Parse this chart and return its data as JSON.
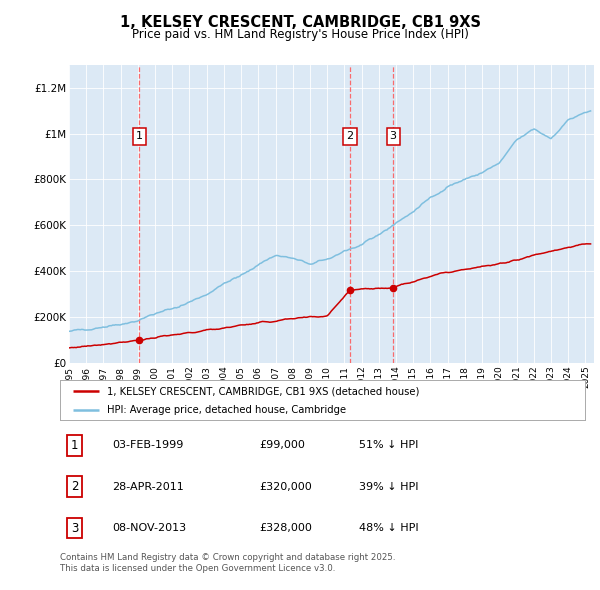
{
  "title_line1": "1, KELSEY CRESCENT, CAMBRIDGE, CB1 9XS",
  "title_line2": "Price paid vs. HM Land Registry's House Price Index (HPI)",
  "background_color": "#dce9f5",
  "sale_prices": [
    99000,
    320000,
    328000
  ],
  "sale_year_floats": [
    1999.08,
    2011.33,
    2013.83
  ],
  "sale_labels": [
    "1",
    "2",
    "3"
  ],
  "sale_info": [
    {
      "label": "1",
      "date": "03-FEB-1999",
      "price": "£99,000",
      "pct": "51% ↓ HPI"
    },
    {
      "label": "2",
      "date": "28-APR-2011",
      "price": "£320,000",
      "pct": "39% ↓ HPI"
    },
    {
      "label": "3",
      "date": "08-NOV-2013",
      "price": "£328,000",
      "pct": "48% ↓ HPI"
    }
  ],
  "legend_line1": "1, KELSEY CRESCENT, CAMBRIDGE, CB1 9XS (detached house)",
  "legend_line2": "HPI: Average price, detached house, Cambridge",
  "footer": "Contains HM Land Registry data © Crown copyright and database right 2025.\nThis data is licensed under the Open Government Licence v3.0.",
  "hpi_color": "#7fbfdf",
  "price_color": "#cc0000",
  "ylim": [
    0,
    1300000
  ],
  "yticks": [
    0,
    200000,
    400000,
    600000,
    800000,
    1000000,
    1200000
  ],
  "ytick_labels": [
    "£0",
    "£200K",
    "£400K",
    "£600K",
    "£800K",
    "£1M",
    "£1.2M"
  ],
  "hpi_key_years": [
    1995,
    1996,
    1997,
    1998,
    1999,
    2000,
    2001,
    2002,
    2003,
    2004,
    2005,
    2006,
    2007,
    2008,
    2009,
    2010,
    2011,
    2012,
    2013,
    2014,
    2015,
    2016,
    2017,
    2018,
    2019,
    2020,
    2021,
    2022,
    2023,
    2024,
    2025.3
  ],
  "hpi_key_vals": [
    135000,
    148000,
    158000,
    170000,
    185000,
    215000,
    235000,
    265000,
    300000,
    345000,
    380000,
    430000,
    470000,
    455000,
    430000,
    450000,
    490000,
    510000,
    560000,
    610000,
    660000,
    720000,
    770000,
    800000,
    830000,
    870000,
    970000,
    1020000,
    980000,
    1060000,
    1100000
  ],
  "price_key_years": [
    1995.0,
    1999.08,
    2006.0,
    2008.5,
    2010.0,
    2011.33,
    2013.83,
    2016.0,
    2018.0,
    2020.0,
    2022.0,
    2024.0,
    2025.3
  ],
  "price_key_vals": [
    65000,
    99000,
    175000,
    195000,
    205000,
    320000,
    328000,
    380000,
    410000,
    430000,
    470000,
    505000,
    520000
  ]
}
